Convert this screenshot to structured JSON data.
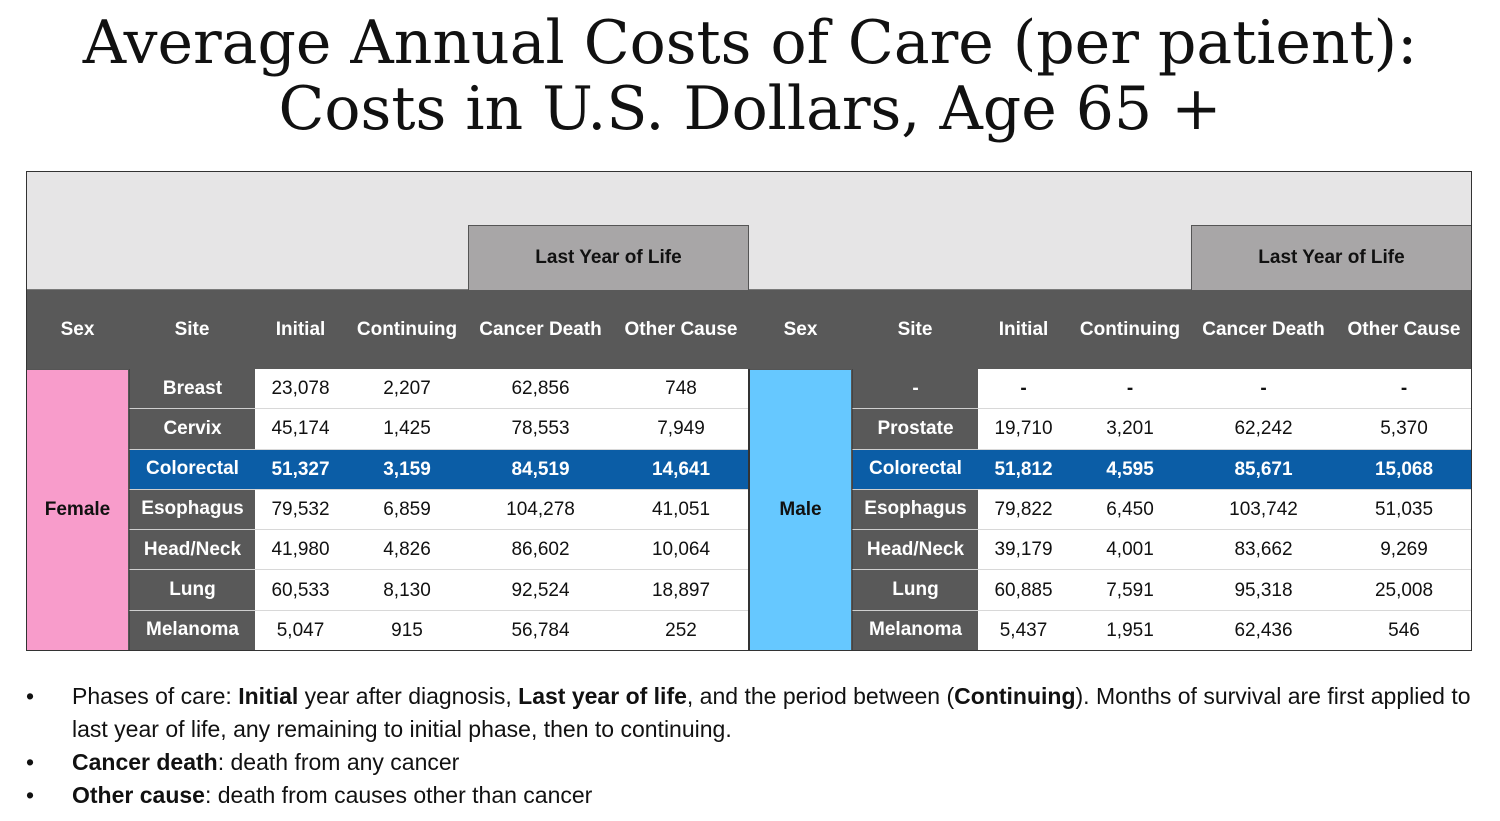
{
  "title": {
    "line1": "Average Annual Costs of Care (per patient):",
    "line2": "Costs in U.S. Dollars, Age 65 +"
  },
  "table": {
    "group_header": "Last Year of Life",
    "columns": [
      "Sex",
      "Site",
      "Initial",
      "Continuing",
      "Cancer Death",
      "Other Cause"
    ],
    "highlight_color": "#0b5da6",
    "female": {
      "label": "Female",
      "color": "#f89ccb",
      "rows": [
        {
          "site": "Breast",
          "initial": "23,078",
          "continuing": "2,207",
          "cancer_death": "62,856",
          "other_cause": "748"
        },
        {
          "site": "Cervix",
          "initial": "45,174",
          "continuing": "1,425",
          "cancer_death": "78,553",
          "other_cause": "7,949"
        },
        {
          "site": "Colorectal",
          "initial": "51,327",
          "continuing": "3,159",
          "cancer_death": "84,519",
          "other_cause": "14,641"
        },
        {
          "site": "Esophagus",
          "initial": "79,532",
          "continuing": "6,859",
          "cancer_death": "104,278",
          "other_cause": "41,051"
        },
        {
          "site": "Head/Neck",
          "initial": "41,980",
          "continuing": "4,826",
          "cancer_death": "86,602",
          "other_cause": "10,064"
        },
        {
          "site": "Lung",
          "initial": "60,533",
          "continuing": "8,130",
          "cancer_death": "92,524",
          "other_cause": "18,897"
        },
        {
          "site": "Melanoma",
          "initial": "5,047",
          "continuing": "915",
          "cancer_death": "56,784",
          "other_cause": "252"
        }
      ]
    },
    "male": {
      "label": "Male",
      "color": "#66c8ff",
      "rows": [
        {
          "site": "-",
          "initial": "-",
          "continuing": "-",
          "cancer_death": "-",
          "other_cause": "-"
        },
        {
          "site": "Prostate",
          "initial": "19,710",
          "continuing": "3,201",
          "cancer_death": "62,242",
          "other_cause": "5,370"
        },
        {
          "site": "Colorectal",
          "initial": "51,812",
          "continuing": "4,595",
          "cancer_death": "85,671",
          "other_cause": "15,068"
        },
        {
          "site": "Esophagus",
          "initial": "79,822",
          "continuing": "6,450",
          "cancer_death": "103,742",
          "other_cause": "51,035"
        },
        {
          "site": "Head/Neck",
          "initial": "39,179",
          "continuing": "4,001",
          "cancer_death": "83,662",
          "other_cause": "9,269"
        },
        {
          "site": "Lung",
          "initial": "60,885",
          "continuing": "7,591",
          "cancer_death": "95,318",
          "other_cause": "25,008"
        },
        {
          "site": "Melanoma",
          "initial": "5,437",
          "continuing": "1,951",
          "cancer_death": "62,436",
          "other_cause": "546"
        }
      ]
    }
  },
  "notes": [
    {
      "parts": [
        {
          "text": "Phases of care:  ",
          "bold": false
        },
        {
          "text": "Initial",
          "bold": true
        },
        {
          "text": " year after diagnosis, ",
          "bold": false
        },
        {
          "text": "Last year of life",
          "bold": true
        },
        {
          "text": ", and the period between (",
          "bold": false
        },
        {
          "text": "Continuing",
          "bold": true
        },
        {
          "text": "). Months of survival are first applied to last year of life, any remaining to initial phase, then to continuing.",
          "bold": false
        }
      ]
    },
    {
      "parts": [
        {
          "text": "Cancer death",
          "bold": true
        },
        {
          "text": ": death from any cancer",
          "bold": false
        }
      ]
    },
    {
      "parts": [
        {
          "text": "Other cause",
          "bold": true
        },
        {
          "text": ": death from causes other than cancer",
          "bold": false
        }
      ]
    }
  ],
  "bullet": "•"
}
